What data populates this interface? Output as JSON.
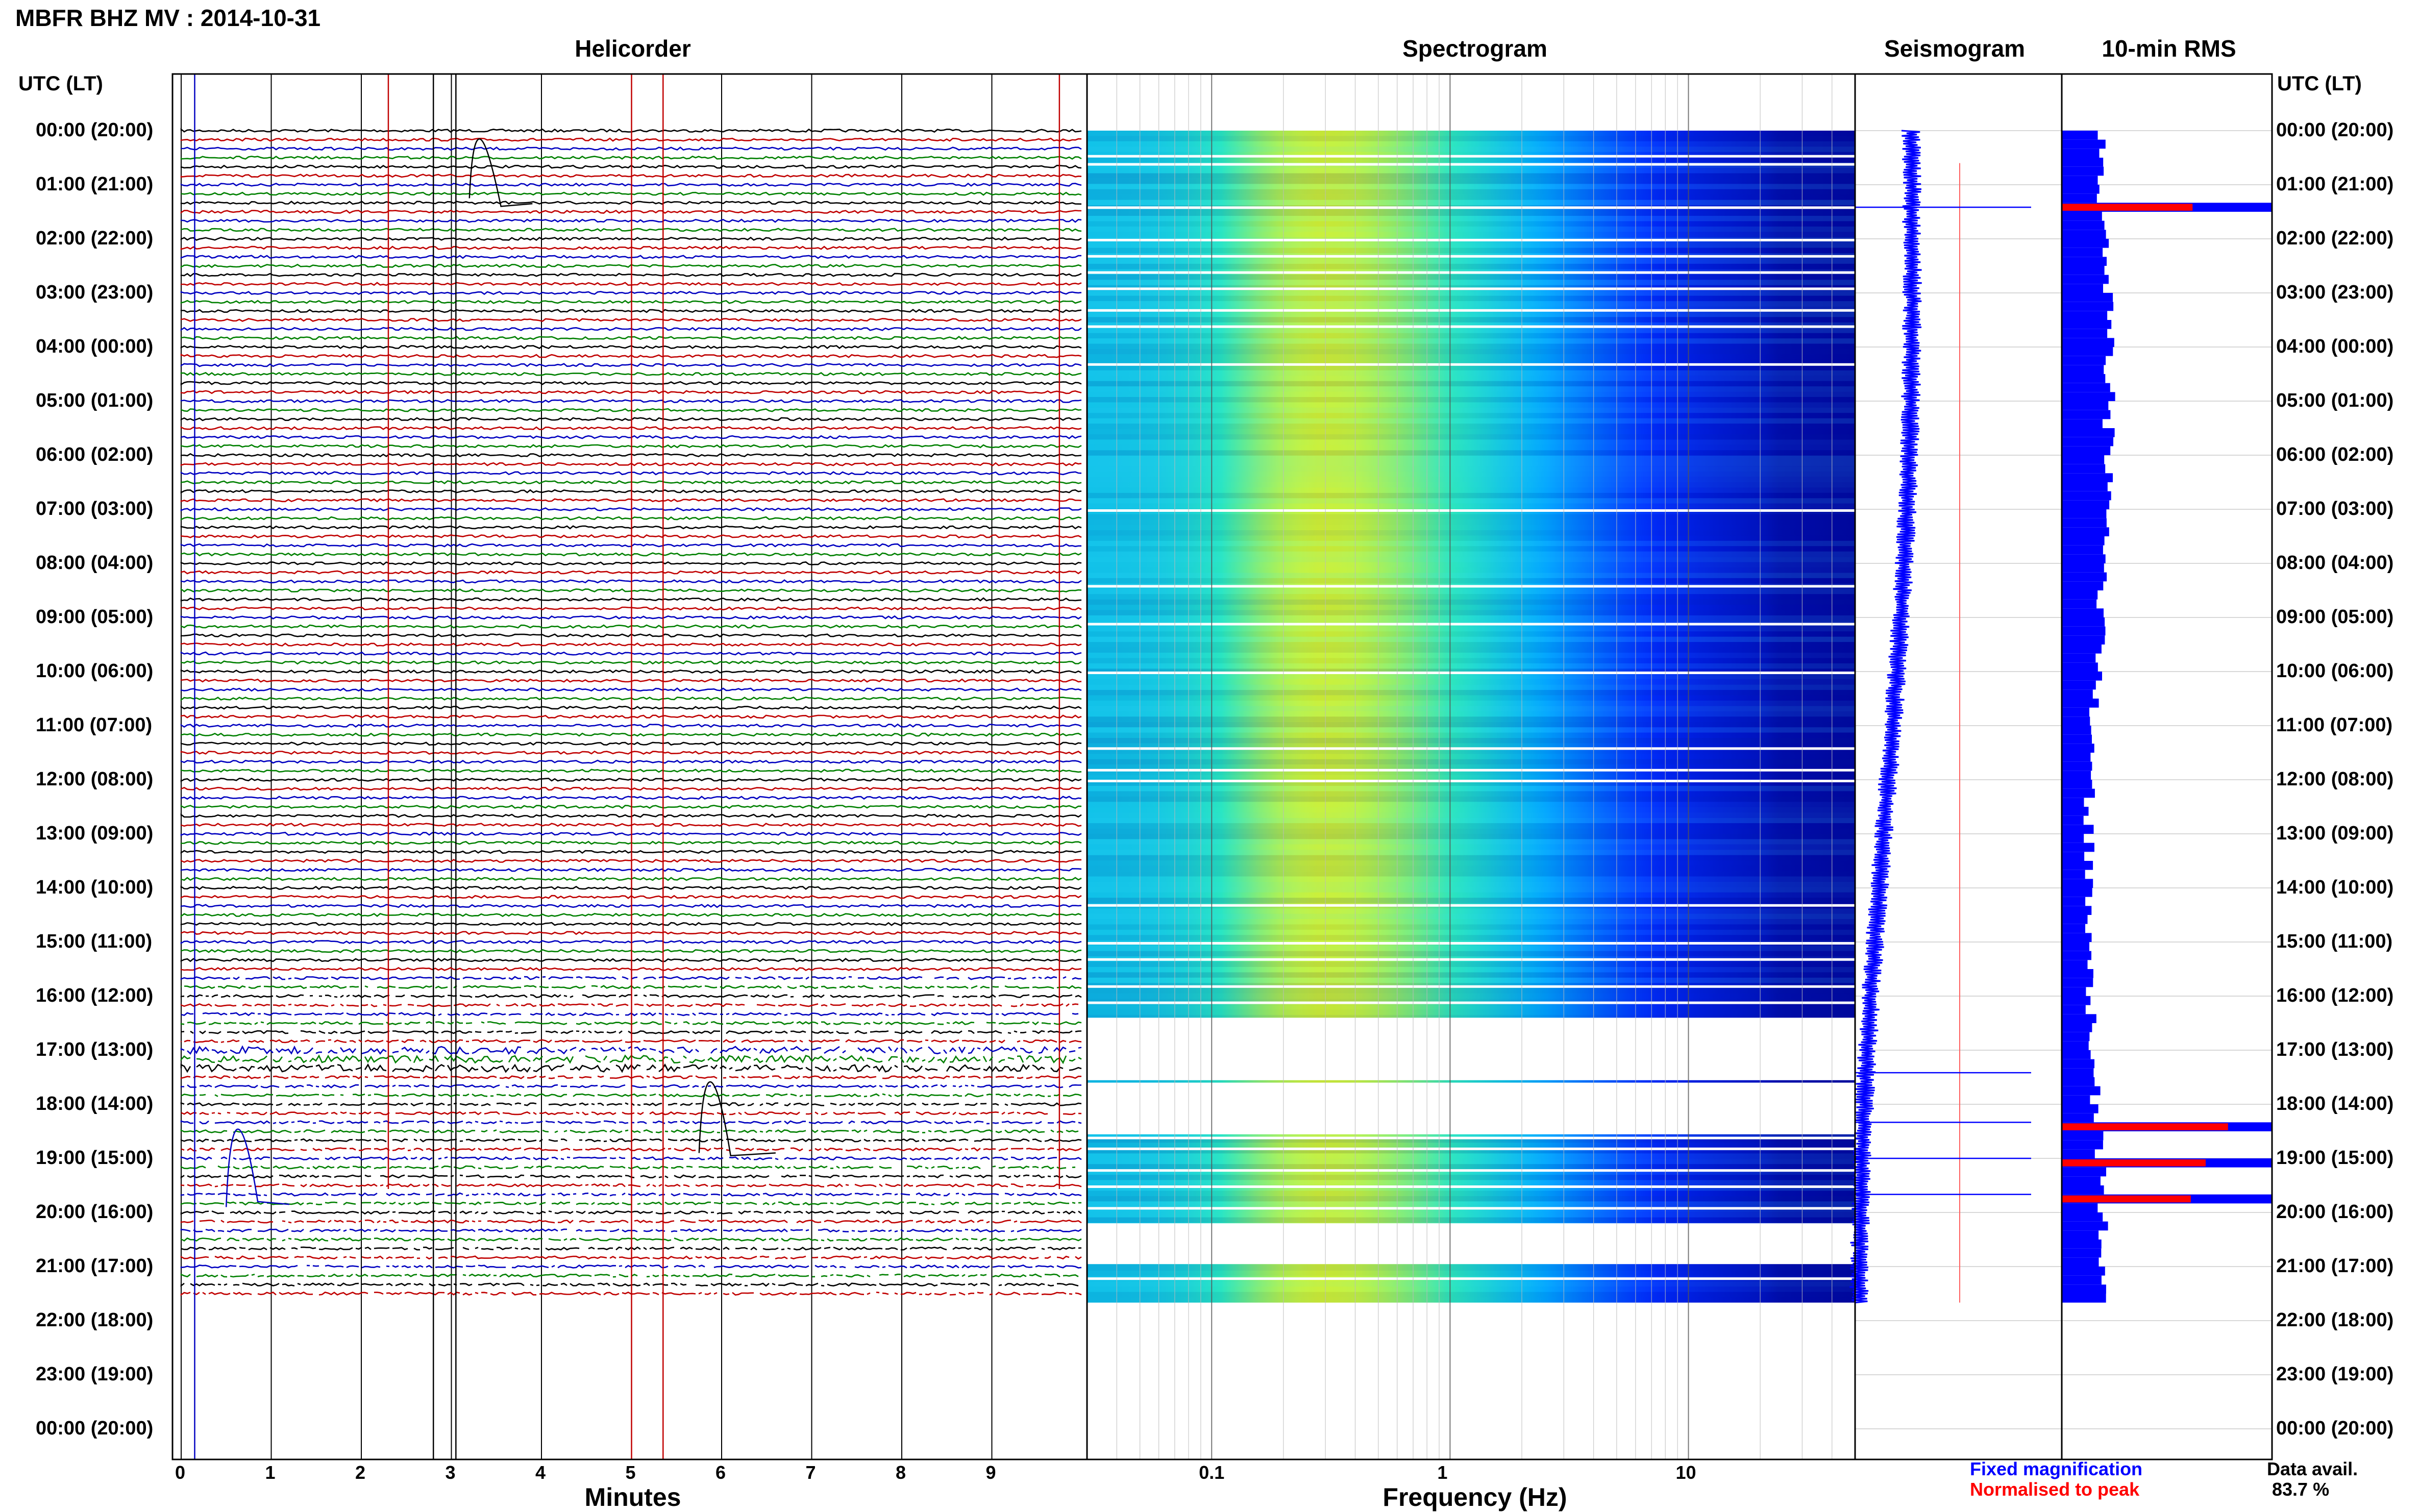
{
  "figure": {
    "title": "MBFR BHZ MV : 2014-10-31",
    "panel_titles": {
      "helicorder": "Helicorder",
      "spectrogram": "Spectrogram",
      "seismogram": "Seismogram",
      "rms": "10-min RMS"
    },
    "time_axis_label": "UTC (LT)",
    "legend": {
      "fixed": "Fixed magnification",
      "normalised": "Normalised to peak"
    },
    "data_availability": {
      "label": "Data avail.",
      "value": "83.7 %"
    },
    "colors": {
      "trace_cycle": [
        "#000000",
        "#c00000",
        "#0000c0",
        "#008000"
      ],
      "fixed_magnification": "#0000ff",
      "normalised_to_peak": "#ff0000"
    }
  },
  "chart_data": [
    {
      "type": "line",
      "title": "Helicorder",
      "xlabel": "Minutes",
      "ylabel": "UTC (LT)",
      "xlim": [
        0,
        10
      ],
      "x_ticks": [
        "0",
        "1",
        "2",
        "3",
        "4",
        "5",
        "6",
        "7",
        "8",
        "9"
      ],
      "y_tick_labels": [
        "00:00 (20:00)",
        "01:00 (21:00)",
        "02:00 (22:00)",
        "03:00 (23:00)",
        "04:00 (00:00)",
        "05:00 (01:00)",
        "06:00 (02:00)",
        "07:00 (03:00)",
        "08:00 (04:00)",
        "09:00 (05:00)",
        "10:00 (06:00)",
        "11:00 (07:00)",
        "12:00 (08:00)",
        "13:00 (09:00)",
        "14:00 (10:00)",
        "15:00 (11:00)",
        "16:00 (12:00)",
        "17:00 (13:00)",
        "18:00 (14:00)",
        "19:00 (15:00)",
        "20:00 (16:00)",
        "21:00 (17:00)",
        "22:00 (18:00)",
        "23:00 (19:00)",
        "00:00 (20:00)"
      ],
      "traces_per_hour": 6,
      "data_end_utc": "21:40"
    },
    {
      "type": "heatmap",
      "title": "Spectrogram",
      "xlabel": "Frequency (Hz)",
      "x_scale": "log",
      "xlim": [
        0.03,
        50
      ],
      "x_ticks": [
        "0.1",
        "1",
        "10"
      ],
      "peak_frequency_hz": 0.25,
      "data_end_utc": "21:40"
    },
    {
      "type": "line",
      "title": "Seismogram",
      "events_utc": [
        "01:25",
        "17:25",
        "18:20",
        "19:00",
        "19:40"
      ]
    },
    {
      "type": "bar",
      "title": "10-min RMS",
      "orientation": "horizontal",
      "series": [
        {
          "name": "Fixed magnification",
          "color": "#0000ff"
        },
        {
          "name": "Normalised to peak",
          "color": "#ff0000"
        }
      ],
      "peaks_utc": [
        "01:20",
        "18:20",
        "19:00",
        "19:40"
      ]
    }
  ]
}
